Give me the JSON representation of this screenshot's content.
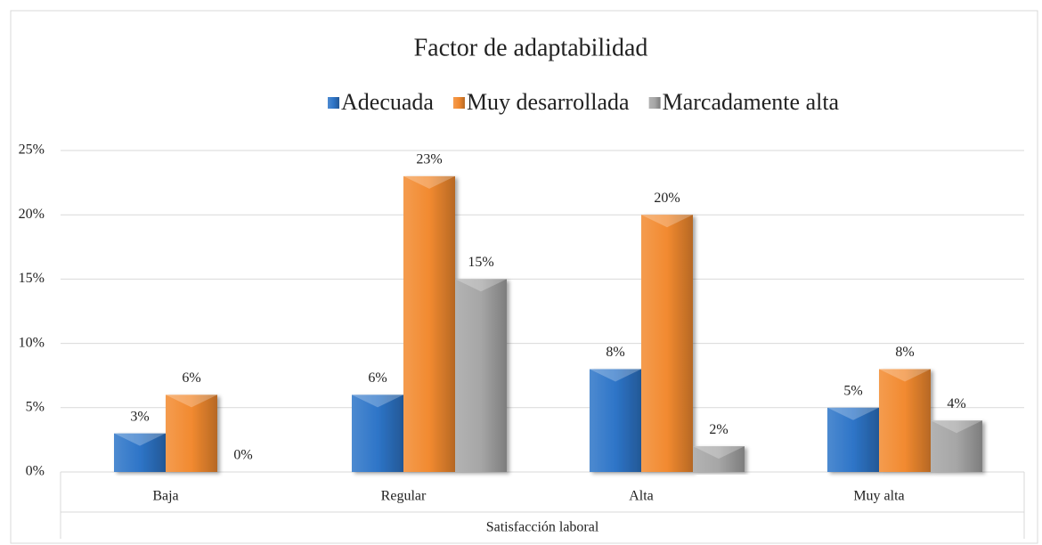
{
  "chart_data": {
    "type": "bar",
    "title": "Factor de adaptabilidad",
    "x_label": "Satisfacción laboral",
    "categories": [
      "Baja",
      "Regular",
      "Alta",
      "Muy alta"
    ],
    "series": [
      {
        "name": "Adecuada",
        "color": "#2e75c8",
        "values": [
          3,
          6,
          8,
          5
        ],
        "value_labels": [
          "3%",
          "6%",
          "8%",
          "5%"
        ]
      },
      {
        "name": "Muy desarrollada",
        "color": "#f28a30",
        "values": [
          6,
          23,
          20,
          8
        ],
        "value_labels": [
          "6%",
          "23%",
          "20%",
          "8%"
        ]
      },
      {
        "name": "Marcadamente alta",
        "color": "#a6a6a6",
        "values": [
          0,
          15,
          2,
          4
        ],
        "value_labels": [
          "0%",
          "15%",
          "2%",
          "4%"
        ]
      }
    ],
    "ylim": [
      0,
      25
    ],
    "yticks": [
      {
        "value": 0,
        "label": "0%"
      },
      {
        "value": 5,
        "label": "5%"
      },
      {
        "value": 10,
        "label": "10%"
      },
      {
        "value": 15,
        "label": "15%"
      },
      {
        "value": 20,
        "label": "20%"
      },
      {
        "value": 25,
        "label": "25%"
      }
    ],
    "grid": true,
    "legend": "top"
  }
}
